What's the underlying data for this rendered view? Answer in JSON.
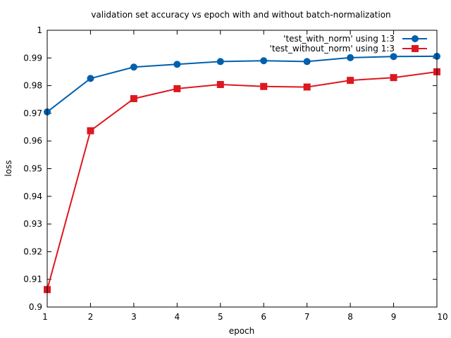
{
  "chart_data": {
    "type": "line",
    "title": "validation set accuracy vs epoch with and without batch-normalization",
    "xlabel": "epoch",
    "ylabel": "loss",
    "xlim": [
      1,
      10
    ],
    "ylim": [
      0.9,
      1.0
    ],
    "xticks": [
      "1",
      "2",
      "3",
      "4",
      "5",
      "6",
      "7",
      "8",
      "9",
      "10"
    ],
    "yticks": [
      "0.9",
      "0.91",
      "0.92",
      "0.93",
      "0.94",
      "0.95",
      "0.96",
      "0.97",
      "0.98",
      "0.99",
      "1"
    ],
    "grid": false,
    "legend_position": "top-right",
    "x": [
      1,
      2,
      3,
      4,
      5,
      6,
      7,
      8,
      9,
      10
    ],
    "series": [
      {
        "name": "'test_with_norm' using 1:3",
        "color": "#0060ad",
        "marker": "circle",
        "values": [
          0.9705,
          0.9826,
          0.9867,
          0.9877,
          0.9887,
          0.989,
          0.9887,
          0.9901,
          0.9905,
          0.9906
        ]
      },
      {
        "name": "'test_without_norm' using 1:3",
        "color": "#dd181f",
        "marker": "square",
        "values": [
          0.9063,
          0.9637,
          0.9753,
          0.9789,
          0.9804,
          0.9797,
          0.9795,
          0.9819,
          0.9829,
          0.985
        ]
      }
    ]
  }
}
